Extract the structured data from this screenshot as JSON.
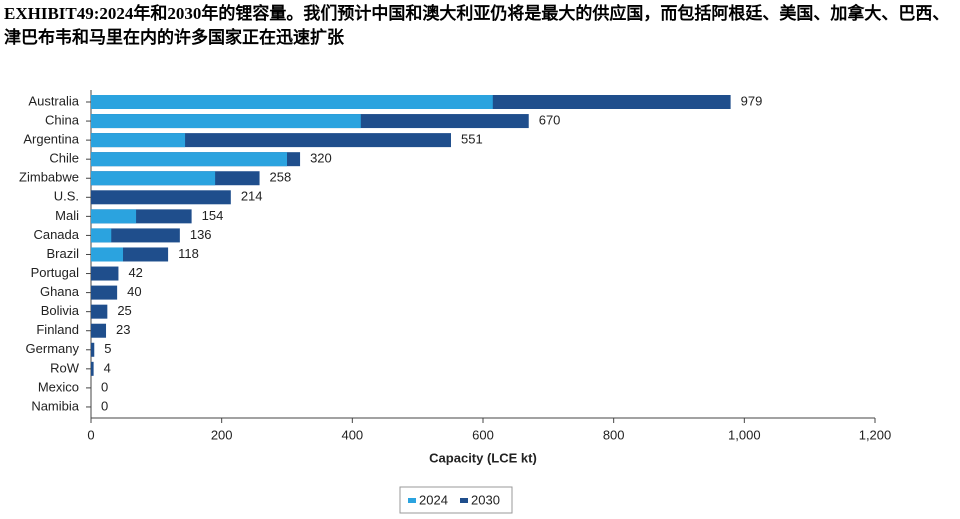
{
  "chart_data": {
    "type": "bar",
    "orientation": "horizontal",
    "overlap": true,
    "title": "EXHIBIT49:2024年和2030年的锂容量。我们预计中国和澳大利亚仍将是最大的供应国，而包括阿根廷、美国、加拿大、巴西、津巴布韦和马里在内的许多国家正在迅速扩张",
    "categories": [
      "Australia",
      "China",
      "Argentina",
      "Chile",
      "Zimbabwe",
      "U.S.",
      "Mali",
      "Canada",
      "Brazil",
      "Portugal",
      "Ghana",
      "Bolivia",
      "Finland",
      "Germany",
      "RoW",
      "Mexico",
      "Namibia"
    ],
    "series": [
      {
        "name": "2030",
        "color": "#1f4e8c",
        "values": [
          979,
          670,
          551,
          320,
          258,
          214,
          154,
          136,
          118,
          42,
          40,
          25,
          23,
          5,
          4,
          0,
          0
        ],
        "show_labels": true
      },
      {
        "name": "2024",
        "color": "#2ba3df",
        "values": [
          615,
          413,
          144,
          300,
          190,
          0,
          69,
          31,
          49,
          0,
          0,
          0,
          0,
          0,
          0,
          0,
          0
        ]
      }
    ],
    "xlabel": "Capacity (LCE kt)",
    "xlim": [
      0,
      1200
    ],
    "xticks": [
      0,
      200,
      400,
      600,
      800,
      {
        "value": 1000,
        "label": "1,000"
      },
      {
        "value": 1200,
        "label": "1,200"
      }
    ],
    "legend": "bottom"
  }
}
